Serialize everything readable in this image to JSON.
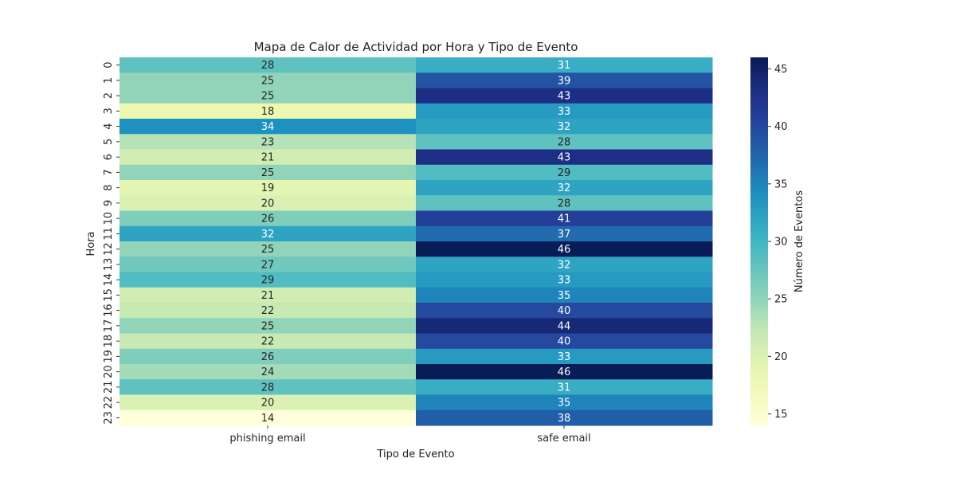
{
  "chart_data": {
    "type": "heatmap",
    "title": "Mapa de Calor de Actividad por Hora y Tipo de Evento",
    "xlabel": "Tipo de Evento",
    "ylabel": "Hora",
    "colorbar_label": "Número de Eventos",
    "colormap": "YlGnBu",
    "x_categories": [
      "phishing email",
      "safe email"
    ],
    "y_categories": [
      "0",
      "1",
      "2",
      "3",
      "4",
      "5",
      "6",
      "7",
      "8",
      "9",
      "10",
      "11",
      "12",
      "13",
      "14",
      "15",
      "16",
      "17",
      "18",
      "19",
      "20",
      "21",
      "22",
      "23"
    ],
    "values": [
      [
        28,
        31
      ],
      [
        25,
        39
      ],
      [
        25,
        43
      ],
      [
        18,
        33
      ],
      [
        34,
        32
      ],
      [
        23,
        28
      ],
      [
        21,
        43
      ],
      [
        25,
        29
      ],
      [
        19,
        32
      ],
      [
        20,
        28
      ],
      [
        26,
        41
      ],
      [
        32,
        37
      ],
      [
        25,
        46
      ],
      [
        27,
        32
      ],
      [
        29,
        33
      ],
      [
        21,
        35
      ],
      [
        22,
        40
      ],
      [
        25,
        44
      ],
      [
        22,
        40
      ],
      [
        26,
        33
      ],
      [
        24,
        46
      ],
      [
        28,
        31
      ],
      [
        20,
        35
      ],
      [
        14,
        38
      ]
    ],
    "vmin": 14,
    "vmax": 46,
    "colorbar_ticks": [
      15,
      20,
      25,
      30,
      35,
      40,
      45
    ]
  }
}
